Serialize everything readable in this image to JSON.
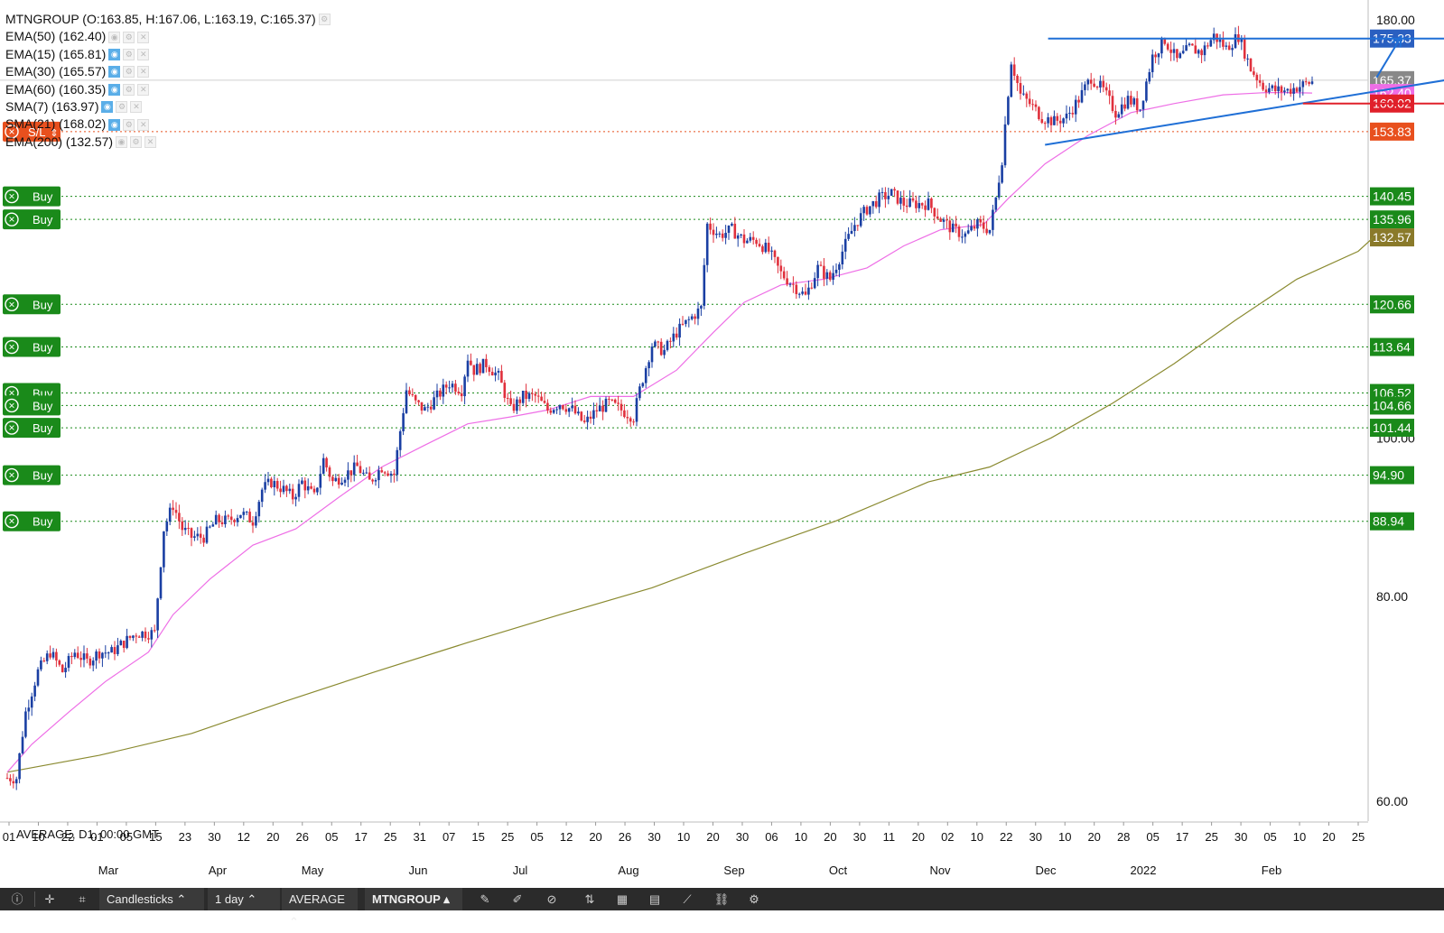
{
  "symbol_line": "MTNGROUP (O:163.85, H:167.06, L:163.19, C:165.37)",
  "indicators": [
    {
      "label": "EMA(50) (162.40)",
      "visible": false
    },
    {
      "label": "EMA(15) (165.81)",
      "visible": true
    },
    {
      "label": "EMA(30) (165.57)",
      "visible": true
    },
    {
      "label": "EMA(60) (160.35)",
      "visible": true
    },
    {
      "label": "SMA(7) (163.97)",
      "visible": true
    },
    {
      "label": "SMA(21) (168.02)",
      "visible": true
    },
    {
      "label": "EMA(200) (132.57)",
      "visible": false
    }
  ],
  "footer": "AVERAGE, D1, 00:00 GMT",
  "toolbar": {
    "chart_type": "Candlesticks",
    "timeframe": "1 day",
    "template": "AVERAGE",
    "symbol": "MTNGROUP"
  },
  "colors": {
    "up": "#1a3fa3",
    "down": "#e0303c",
    "ema50": "#ee6ee6",
    "ema200": "#8a8a30",
    "trend": "#1f6fd6",
    "stop": "#e8501e",
    "buy": "#1a8a1a",
    "support": "#e0202a"
  },
  "chart_data": {
    "type": "candlestick",
    "y_axis": {
      "scale": "log",
      "ticks": [
        180,
        100,
        80,
        60
      ],
      "price_labels": [
        {
          "value": 175.33,
          "text": "175.33",
          "color": "#2a5fc0"
        },
        {
          "value": 165.37,
          "text": "165.37",
          "color": "#888888"
        },
        {
          "value": 162.4,
          "text": "162.40",
          "color": "#ee6ee6"
        },
        {
          "value": 160.02,
          "text": "160.02",
          "color": "#e0202a"
        },
        {
          "value": 153.83,
          "text": "153.83",
          "color": "#e8501e"
        },
        {
          "value": 140.45,
          "text": "140.45",
          "color": "#1a8a1a"
        },
        {
          "value": 135.96,
          "text": "135.96",
          "color": "#1a8a1a"
        },
        {
          "value": 132.57,
          "text": "132.57",
          "color": "#8a7a2a"
        },
        {
          "value": 120.66,
          "text": "120.66",
          "color": "#1a8a1a"
        },
        {
          "value": 113.64,
          "text": "113.64",
          "color": "#1a8a1a"
        },
        {
          "value": 106.52,
          "text": "106.52",
          "color": "#1a8a1a"
        },
        {
          "value": 104.66,
          "text": "104.66",
          "color": "#1a8a1a"
        },
        {
          "value": 101.44,
          "text": "101.44",
          "color": "#1a8a1a"
        },
        {
          "value": 94.9,
          "text": "94.90",
          "color": "#1a8a1a"
        },
        {
          "value": 88.94,
          "text": "88.94",
          "color": "#1a8a1a"
        }
      ]
    },
    "x_axis": {
      "day_ticks": [
        "01",
        "10",
        "22",
        "01",
        "05",
        "15",
        "23",
        "30",
        "12",
        "20",
        "26",
        "05",
        "17",
        "25",
        "31",
        "07",
        "15",
        "25",
        "05",
        "12",
        "20",
        "26",
        "30",
        "10",
        "20",
        "30",
        "06",
        "10",
        "20",
        "30",
        "11",
        "20",
        "02",
        "10",
        "22",
        "30",
        "10",
        "20",
        "28",
        "05",
        "17",
        "25",
        "30",
        "05",
        "10",
        "20",
        "25"
      ],
      "month_labels": [
        "Mar",
        "Apr",
        "May",
        "Jun",
        "Jul",
        "Aug",
        "Sep",
        "Oct",
        "Nov",
        "Dec",
        "2022",
        "Feb"
      ]
    },
    "orders": [
      {
        "label": "S/L",
        "price": 153.83
      },
      {
        "label": "Buy",
        "price": 140.45
      },
      {
        "label": "Buy",
        "price": 135.96
      },
      {
        "label": "Buy",
        "price": 120.66
      },
      {
        "label": "Buy",
        "price": 113.64
      },
      {
        "label": "Buy",
        "price": 106.52
      },
      {
        "label": "Buy",
        "price": 104.66
      },
      {
        "label": "Buy",
        "price": 101.44
      },
      {
        "label": "Buy",
        "price": 94.9
      },
      {
        "label": "Buy",
        "price": 88.94
      }
    ],
    "close_path": [
      [
        0,
        62
      ],
      [
        3,
        62
      ],
      [
        6,
        68
      ],
      [
        10,
        72
      ],
      [
        14,
        74
      ],
      [
        18,
        72
      ],
      [
        22,
        74
      ],
      [
        26,
        73
      ],
      [
        30,
        74
      ],
      [
        34,
        74
      ],
      [
        38,
        75
      ],
      [
        42,
        76
      ],
      [
        46,
        76
      ],
      [
        48,
        76
      ],
      [
        51,
        88
      ],
      [
        54,
        91
      ],
      [
        57,
        88
      ],
      [
        60,
        87
      ],
      [
        64,
        87
      ],
      [
        68,
        89
      ],
      [
        72,
        89
      ],
      [
        76,
        90
      ],
      [
        80,
        89
      ],
      [
        83,
        93
      ],
      [
        86,
        94
      ],
      [
        90,
        93
      ],
      [
        93,
        92
      ],
      [
        96,
        94
      ],
      [
        100,
        92
      ],
      [
        103,
        97
      ],
      [
        106,
        94
      ],
      [
        110,
        95
      ],
      [
        114,
        96
      ],
      [
        118,
        94
      ],
      [
        122,
        96
      ],
      [
        126,
        95
      ],
      [
        130,
        107
      ],
      [
        133,
        105
      ],
      [
        136,
        104
      ],
      [
        140,
        106
      ],
      [
        144,
        108
      ],
      [
        148,
        107
      ],
      [
        150,
        112
      ],
      [
        152,
        110
      ],
      [
        156,
        111
      ],
      [
        160,
        109
      ],
      [
        164,
        104
      ],
      [
        168,
        106
      ],
      [
        172,
        106
      ],
      [
        176,
        104
      ],
      [
        180,
        105
      ],
      [
        184,
        104
      ],
      [
        188,
        102
      ],
      [
        192,
        104
      ],
      [
        196,
        105
      ],
      [
        200,
        104
      ],
      [
        204,
        103
      ],
      [
        206,
        107
      ],
      [
        210,
        114
      ],
      [
        214,
        113
      ],
      [
        218,
        116
      ],
      [
        222,
        118
      ],
      [
        226,
        120
      ],
      [
        228,
        135
      ],
      [
        232,
        133
      ],
      [
        236,
        134
      ],
      [
        240,
        132
      ],
      [
        244,
        132
      ],
      [
        248,
        130
      ],
      [
        252,
        126
      ],
      [
        256,
        124
      ],
      [
        260,
        122
      ],
      [
        264,
        127
      ],
      [
        268,
        125
      ],
      [
        272,
        130
      ],
      [
        276,
        135
      ],
      [
        280,
        138
      ],
      [
        284,
        140
      ],
      [
        288,
        141
      ],
      [
        292,
        139
      ],
      [
        296,
        139
      ],
      [
        300,
        139
      ],
      [
        304,
        136
      ],
      [
        308,
        134
      ],
      [
        312,
        133
      ],
      [
        316,
        135
      ],
      [
        320,
        134
      ],
      [
        322,
        140
      ],
      [
        324,
        148
      ],
      [
        327,
        170
      ],
      [
        330,
        162
      ],
      [
        333,
        160
      ],
      [
        337,
        157
      ],
      [
        341,
        156
      ],
      [
        345,
        157
      ],
      [
        349,
        161
      ],
      [
        353,
        166
      ],
      [
        357,
        163
      ],
      [
        361,
        158
      ],
      [
        365,
        161
      ],
      [
        369,
        159
      ],
      [
        373,
        171
      ],
      [
        377,
        175
      ],
      [
        381,
        170
      ],
      [
        385,
        173
      ],
      [
        389,
        172
      ],
      [
        393,
        176
      ],
      [
        397,
        173
      ],
      [
        401,
        176
      ],
      [
        405,
        168
      ],
      [
        409,
        164
      ],
      [
        413,
        163
      ],
      [
        417,
        163
      ],
      [
        421,
        164
      ],
      [
        425,
        165
      ]
    ],
    "ema50": [
      [
        0,
        62.5
      ],
      [
        8,
        65
      ],
      [
        20,
        68
      ],
      [
        32,
        71
      ],
      [
        46,
        74
      ],
      [
        54,
        78
      ],
      [
        66,
        82
      ],
      [
        80,
        86
      ],
      [
        94,
        88
      ],
      [
        108,
        92
      ],
      [
        122,
        96
      ],
      [
        136,
        99
      ],
      [
        150,
        102
      ],
      [
        164,
        103
      ],
      [
        176,
        104
      ],
      [
        190,
        106
      ],
      [
        204,
        106
      ],
      [
        218,
        110
      ],
      [
        230,
        116
      ],
      [
        240,
        121
      ],
      [
        252,
        124
      ],
      [
        266,
        125
      ],
      [
        280,
        127
      ],
      [
        292,
        131
      ],
      [
        304,
        134
      ],
      [
        318,
        135
      ],
      [
        326,
        140
      ],
      [
        338,
        147
      ],
      [
        352,
        153
      ],
      [
        366,
        158
      ],
      [
        380,
        160
      ],
      [
        396,
        162
      ],
      [
        410,
        162.5
      ],
      [
        418,
        162.5
      ],
      [
        425,
        162.4
      ]
    ],
    "ema200": [
      [
        0,
        62.5
      ],
      [
        30,
        64
      ],
      [
        60,
        66
      ],
      [
        90,
        69
      ],
      [
        120,
        72
      ],
      [
        150,
        75
      ],
      [
        180,
        78
      ],
      [
        210,
        81
      ],
      [
        240,
        85
      ],
      [
        270,
        89
      ],
      [
        300,
        94
      ],
      [
        320,
        96
      ],
      [
        340,
        100
      ],
      [
        360,
        105
      ],
      [
        380,
        111
      ],
      [
        400,
        118
      ],
      [
        420,
        125
      ],
      [
        440,
        130
      ],
      [
        445,
        132.6
      ]
    ],
    "trendlines": [
      {
        "name": "resistance",
        "from": [
          339,
          175.33
        ],
        "to": [
          533,
          175.33
        ]
      },
      {
        "name": "rising-support",
        "from": [
          338,
          151
        ],
        "to": [
          491,
          168
        ]
      },
      {
        "name": "breakout-arrow",
        "from": [
          446,
          166
        ],
        "to": [
          454,
          175.8
        ]
      },
      {
        "name": "support-line",
        "from": [
          422,
          160.02
        ],
        "to": [
          533,
          160.02
        ]
      }
    ]
  }
}
